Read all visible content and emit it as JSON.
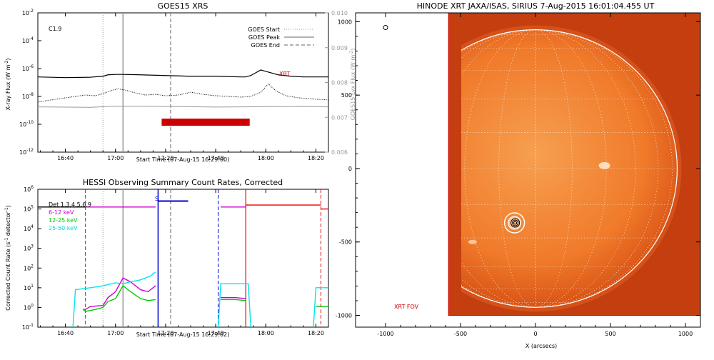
{
  "colors": {
    "xrt": "#cc0000",
    "gray": "#999999",
    "black": "#000000",
    "magenta": "#cc00cc",
    "green": "#00cc00",
    "cyan": "#00e5ee",
    "blue": "#0000cc",
    "red": "#ee0000",
    "sun_edge": "#b83a0c",
    "sun_mid": "#f07828",
    "sun_center": "#f59545",
    "frame_bg": "#c43e10"
  },
  "chart_data": [
    {
      "id": "goes",
      "type": "line",
      "title": "GOES15 XRS",
      "xlabel": "Start Time (07-Aug-15 16:29:00)",
      "ylabel": "X-ray Flux (W m^-2)",
      "ylabel_right": "GOES15 Lyx Flux (W m^-2)",
      "x_ticks": [
        "16:40",
        "17:00",
        "17:20",
        "17:40",
        "18:00",
        "18:20"
      ],
      "x_tick_minutes": [
        40,
        60,
        80,
        100,
        120,
        140
      ],
      "xlim_minutes": [
        29,
        145
      ],
      "ylim_exp": [
        -12,
        -2
      ],
      "y_tick_labels": [
        "10",
        "10",
        "10",
        "10",
        "10",
        "10"
      ],
      "y_tick_exps": [
        "-12",
        "-10",
        "-8",
        "-6",
        "-4",
        "-2"
      ],
      "y_right_ticks": [
        "0.006",
        "0.007",
        "0.008",
        "0.009",
        "0.010"
      ],
      "flare_class": "C1.9",
      "legend": [
        "GOES Start",
        "GOES Peak",
        "GOES End"
      ],
      "xrt_label": "XRT",
      "event_lines_minutes": {
        "start": 55,
        "peak": 63,
        "end": 82
      },
      "xrt_obs_minutes": [
        79,
        113
      ],
      "series": [
        {
          "name": "long",
          "x": [
            29,
            40,
            50,
            55,
            57,
            60,
            63,
            70,
            80,
            90,
            100,
            110,
            112,
            114,
            118,
            120,
            125,
            130,
            135,
            145
          ],
          "y": [
            -6.6,
            -6.65,
            -6.62,
            -6.55,
            -6.45,
            -6.42,
            -6.42,
            -6.45,
            -6.5,
            -6.55,
            -6.55,
            -6.6,
            -6.6,
            -6.5,
            -6.1,
            -6.2,
            -6.45,
            -6.55,
            -6.6,
            -6.6
          ]
        },
        {
          "name": "short",
          "x": [
            29,
            40,
            48,
            52,
            55,
            58,
            61,
            64,
            68,
            72,
            76,
            80,
            85,
            90,
            95,
            100,
            105,
            110,
            114,
            118,
            121,
            124,
            128,
            133,
            140,
            145
          ],
          "y": [
            -8.4,
            -8.1,
            -7.9,
            -7.95,
            -7.8,
            -7.6,
            -7.45,
            -7.55,
            -7.75,
            -7.9,
            -7.85,
            -7.95,
            -7.9,
            -7.7,
            -7.85,
            -7.95,
            -8.0,
            -8.05,
            -8.0,
            -7.7,
            -7.1,
            -7.6,
            -7.95,
            -8.1,
            -8.2,
            -8.25
          ]
        },
        {
          "name": "lya",
          "x": [
            29,
            50,
            60,
            80,
            100,
            120,
            135,
            145
          ],
          "y": [
            -8.75,
            -8.78,
            -8.7,
            -8.72,
            -8.76,
            -8.74,
            -8.72,
            -8.75
          ]
        }
      ]
    },
    {
      "id": "hessi",
      "type": "line",
      "title": "HESSI Observing Summary Count Rates, Corrected",
      "xlabel": "Start Time (07-Aug-15 16:29:02)",
      "ylabel": "Corrected Count Rate (s^-1 detector^-1)",
      "x_ticks": [
        "16:40",
        "17:00",
        "17:20",
        "17:40",
        "18:00",
        "18:20"
      ],
      "x_tick_minutes": [
        40,
        60,
        80,
        100,
        120,
        140
      ],
      "xlim_minutes": [
        29,
        145
      ],
      "ylim_exp": [
        -1,
        6
      ],
      "y_tick_labels": [
        "10",
        "10",
        "10",
        "10",
        "10",
        "10",
        "10",
        "10"
      ],
      "y_tick_exps": [
        "-1",
        "0",
        "1",
        "2",
        "3",
        "4",
        "5",
        "6"
      ],
      "legend": [
        "Det 1,3,4,5,6,9",
        "6-12 keV",
        "12-25 keV",
        "25-50 keV"
      ],
      "s_label": "S",
      "saa_minutes": [
        77,
        101
      ],
      "vlines_solid_red": [
        112
      ],
      "vlines_dashed_red": [
        48,
        142
      ],
      "vlines_gray_solid": [
        63
      ],
      "vlines_gray_dotted": [
        55
      ],
      "vlines_gray_dashed": [
        82
      ],
      "series": [
        {
          "name": "Det 1,3,4,5,6,9",
          "color": "black",
          "segments": [
            [
              [
                29,
                5.1
              ],
              [
                48,
                5.1
              ]
            ]
          ]
        },
        {
          "name": "6-12 keV",
          "color": "magenta",
          "segments": [
            [
              [
                48,
                5.1
              ],
              [
                76,
                5.1
              ]
            ],
            [
              [
                102,
                5.1
              ],
              [
                112,
                5.1
              ]
            ],
            [
              [
                47,
                -0.1
              ],
              [
                48,
                -0.1
              ],
              [
                50,
                0.05
              ],
              [
                55,
                0.1
              ],
              [
                57,
                0.5
              ],
              [
                60,
                0.8
              ],
              [
                63,
                1.5
              ],
              [
                66,
                1.3
              ],
              [
                70,
                0.9
              ],
              [
                73,
                0.8
              ],
              [
                76,
                1.1
              ]
            ],
            [
              [
                102,
                0.5
              ],
              [
                108,
                0.5
              ],
              [
                112,
                0.45
              ]
            ]
          ]
        },
        {
          "name": "12-25 keV",
          "color": "green",
          "segments": [
            [
              [
                47,
                -0.1
              ],
              [
                48,
                -0.2
              ],
              [
                52,
                -0.1
              ],
              [
                55,
                0.0
              ],
              [
                57,
                0.3
              ],
              [
                60,
                0.45
              ],
              [
                63,
                1.1
              ],
              [
                66,
                0.8
              ],
              [
                70,
                0.45
              ],
              [
                73,
                0.35
              ],
              [
                76,
                0.4
              ]
            ],
            [
              [
                102,
                0.4
              ],
              [
                108,
                0.4
              ],
              [
                112,
                0.35
              ]
            ],
            [
              [
                140,
                0.05
              ],
              [
                145,
                0.05
              ]
            ]
          ]
        },
        {
          "name": "25-50 keV",
          "color": "cyan",
          "segments": [
            [
              [
                43,
                -1
              ],
              [
                44,
                0.9
              ],
              [
                50,
                1.0
              ],
              [
                55,
                1.1
              ],
              [
                60,
                1.25
              ],
              [
                63,
                1.2
              ],
              [
                66,
                1.3
              ],
              [
                70,
                1.4
              ],
              [
                74,
                1.6
              ],
              [
                76,
                1.8
              ]
            ],
            [
              [
                101,
                -1
              ],
              [
                102,
                1.2
              ],
              [
                108,
                1.2
              ],
              [
                113,
                1.2
              ],
              [
                114,
                -1
              ]
            ],
            [
              [
                139,
                -1
              ],
              [
                140,
                1.0
              ],
              [
                145,
                1.0
              ]
            ]
          ]
        },
        {
          "name": "attenuator",
          "color": "red",
          "segments": [
            [
              [
                112,
                5.2
              ],
              [
                142,
                5.2
              ]
            ],
            [
              [
                142,
                5.0
              ],
              [
                145,
                5.0
              ]
            ]
          ]
        },
        {
          "name": "saa",
          "color": "blue",
          "segments": [
            [
              [
                77,
                5.4
              ],
              [
                89,
                5.4
              ],
              [
                89,
                5.4
              ],
              [
                89,
                5.4
              ]
            ]
          ]
        }
      ]
    },
    {
      "id": "xrt",
      "type": "heatmap",
      "title": "HINODE XRT JAXA/ISAS, SIRIUS   7-Aug-2015 16:01:04.455 UT",
      "xlabel": "X (arcsecs)",
      "x_ticks": [
        "-1000",
        "-500",
        "0",
        "500",
        "1000"
      ],
      "x_tick_values": [
        -1000,
        -500,
        0,
        500,
        1000
      ],
      "y_ticks": [
        "-1000",
        "-500",
        "0",
        "500",
        "1000"
      ],
      "y_tick_values": [
        -1000,
        -500,
        0,
        500,
        1000
      ],
      "xlim": [
        -1200,
        1100
      ],
      "ylim": [
        -1080,
        1060
      ],
      "fov_label": "XRT FOV",
      "fov_x": [
        -580,
        1100
      ],
      "fov_y": [
        -1000,
        1060
      ],
      "limb_radius": 945,
      "flare_center": [
        -140,
        -370
      ]
    }
  ]
}
